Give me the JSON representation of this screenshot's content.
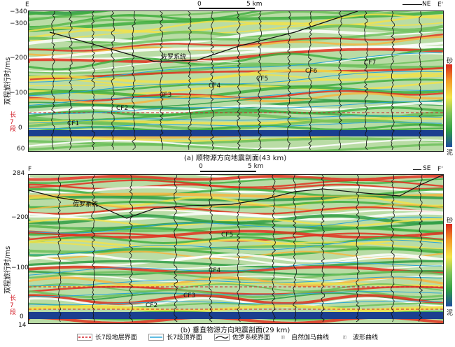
{
  "panel_a": {
    "corner_left": "E",
    "corner_right": "E'",
    "direction": "NE",
    "scale_zero": "0",
    "scale_label": "5 km",
    "ylabel": "双程旅行时/ms",
    "yticks": [
      "−340",
      "−300",
      "−200",
      "−100",
      "0",
      "60"
    ],
    "member_label": "长7段",
    "horizon_labels": [
      "CF1",
      "CF2",
      "CF3",
      "CF4",
      "CF5",
      "CF6",
      "CF7",
      "佐罗系统"
    ],
    "caption": "(a) 顺物源方向地震剖面(43 km)",
    "cbar_top": "砂",
    "cbar_bottom": "泥"
  },
  "panel_b": {
    "corner_left": "F",
    "corner_right": "F'",
    "direction": "SE",
    "scale_zero": "0",
    "scale_label": "5 km",
    "ylabel": "双程旅行时/ms",
    "yticks": [
      "284",
      "−200",
      "−100",
      "0",
      "14"
    ],
    "member_label": "长7段",
    "horizon_labels": [
      "CF2",
      "CF3",
      "CF4",
      "CF5",
      "佐罗系统"
    ],
    "caption": "(b) 垂直物源方向地震剖面(29 km)",
    "cbar_top": "砂",
    "cbar_bottom": "泥"
  },
  "legend": {
    "items": [
      "长7段地层界面",
      "长7段顶界面",
      "佐罗系统界面",
      "自然伽马曲线",
      "波形曲线"
    ]
  },
  "colors": {
    "seismic_green": "#3fae3f",
    "seismic_yellow": "#f1e24a",
    "seismic_red": "#e0301e",
    "seismic_blue": "#1b3f8f",
    "horizon_cyan": "#2aa6d8",
    "boundary_red": "#d3202a"
  }
}
